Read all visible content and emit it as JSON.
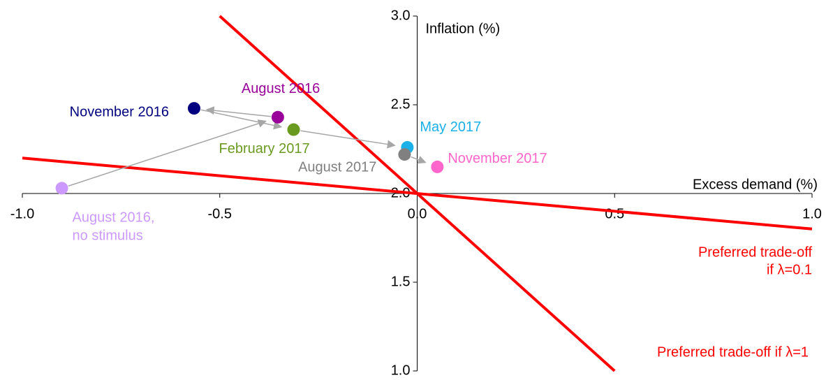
{
  "chart_data": {
    "type": "scatter",
    "x_label": "Excess demand (%)",
    "y_label": "Inflation (%)",
    "xlim": [
      -1.0,
      1.0
    ],
    "ylim": [
      1.0,
      3.0
    ],
    "xticks": [
      {
        "value": -1.0,
        "label": "-1.0"
      },
      {
        "value": -0.5,
        "label": "-0.5"
      },
      {
        "value": 0,
        "label": "0.0"
      },
      {
        "value": 0.5,
        "label": "0.5"
      },
      {
        "value": 1.0,
        "label": "1.0"
      }
    ],
    "yticks": [
      {
        "value": 1.0,
        "label": "1.0"
      },
      {
        "value": 1.5,
        "label": "1.5"
      },
      {
        "value": 2.0,
        "label": "2.0"
      },
      {
        "value": 2.5,
        "label": "2.5"
      },
      {
        "value": 3.0,
        "label": "3.0"
      }
    ],
    "series": [
      {
        "name": [
          "August 2016,",
          "no stimulus"
        ],
        "color": "#cc99ff",
        "x": [
          -0.9
        ],
        "values": [
          2.03
        ]
      },
      {
        "name": [
          "August 2016"
        ],
        "color": "#990099",
        "x": [
          -0.353
        ],
        "values": [
          2.43
        ]
      },
      {
        "name": [
          "November 2016"
        ],
        "color": "#000080",
        "x": [
          -0.565
        ],
        "values": [
          2.48
        ]
      },
      {
        "name": [
          "February 2017"
        ],
        "color": "#6a9a1f",
        "x": [
          -0.313
        ],
        "values": [
          2.36
        ]
      },
      {
        "name": [
          "May 2017"
        ],
        "color": "#1ab0e8",
        "x": [
          -0.025
        ],
        "values": [
          2.26
        ]
      },
      {
        "name": [
          "August 2017"
        ],
        "color": "#808080",
        "x": [
          -0.032
        ],
        "values": [
          2.22
        ]
      },
      {
        "name": [
          "November 2017"
        ],
        "color": "#ff66cc",
        "x": [
          0.051
        ],
        "values": [
          2.15
        ]
      }
    ],
    "lines": [
      {
        "name": [
          "Preferred trade-off if λ=1"
        ],
        "color": "#ff0000",
        "x": [
          -0.5,
          0.5
        ],
        "values": [
          3.0,
          1.0
        ]
      },
      {
        "name": [
          "Preferred trade-off",
          "if λ=0.1"
        ],
        "color": "#ff0000",
        "x": [
          -1.0,
          1.0
        ],
        "values": [
          2.2,
          1.8
        ]
      }
    ]
  }
}
